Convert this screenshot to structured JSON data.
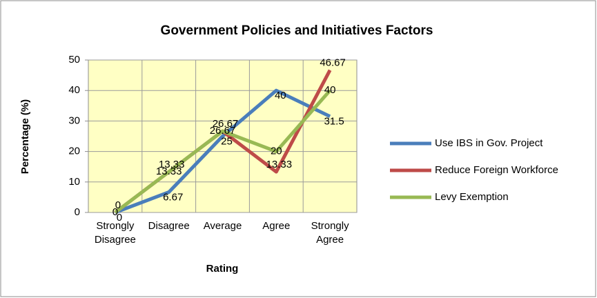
{
  "chart_data": {
    "type": "line",
    "title": "Government Policies and Initiatives Factors",
    "x_label": "Rating",
    "y_label": "Percentage (%)",
    "categories": [
      "Strongly Disagree",
      "Disagree",
      "Average",
      "Agree",
      "Strongly Agree"
    ],
    "series": [
      {
        "name": "Use IBS in Gov. Project",
        "color": "#4a7ebb",
        "values": [
          0,
          6.67,
          25,
          40,
          31.5
        ]
      },
      {
        "name": "Reduce Foreign Workforce",
        "color": "#be4b48",
        "values": [
          0,
          13.33,
          26.67,
          13.33,
          46.67
        ]
      },
      {
        "name": "Levy Exemption",
        "color": "#98b954",
        "values": [
          0,
          13.33,
          26.67,
          20,
          40
        ]
      }
    ],
    "ylim": [
      0,
      50
    ],
    "yticks": [
      0,
      10,
      20,
      30,
      40,
      50
    ],
    "grid": true,
    "legend": "right"
  }
}
